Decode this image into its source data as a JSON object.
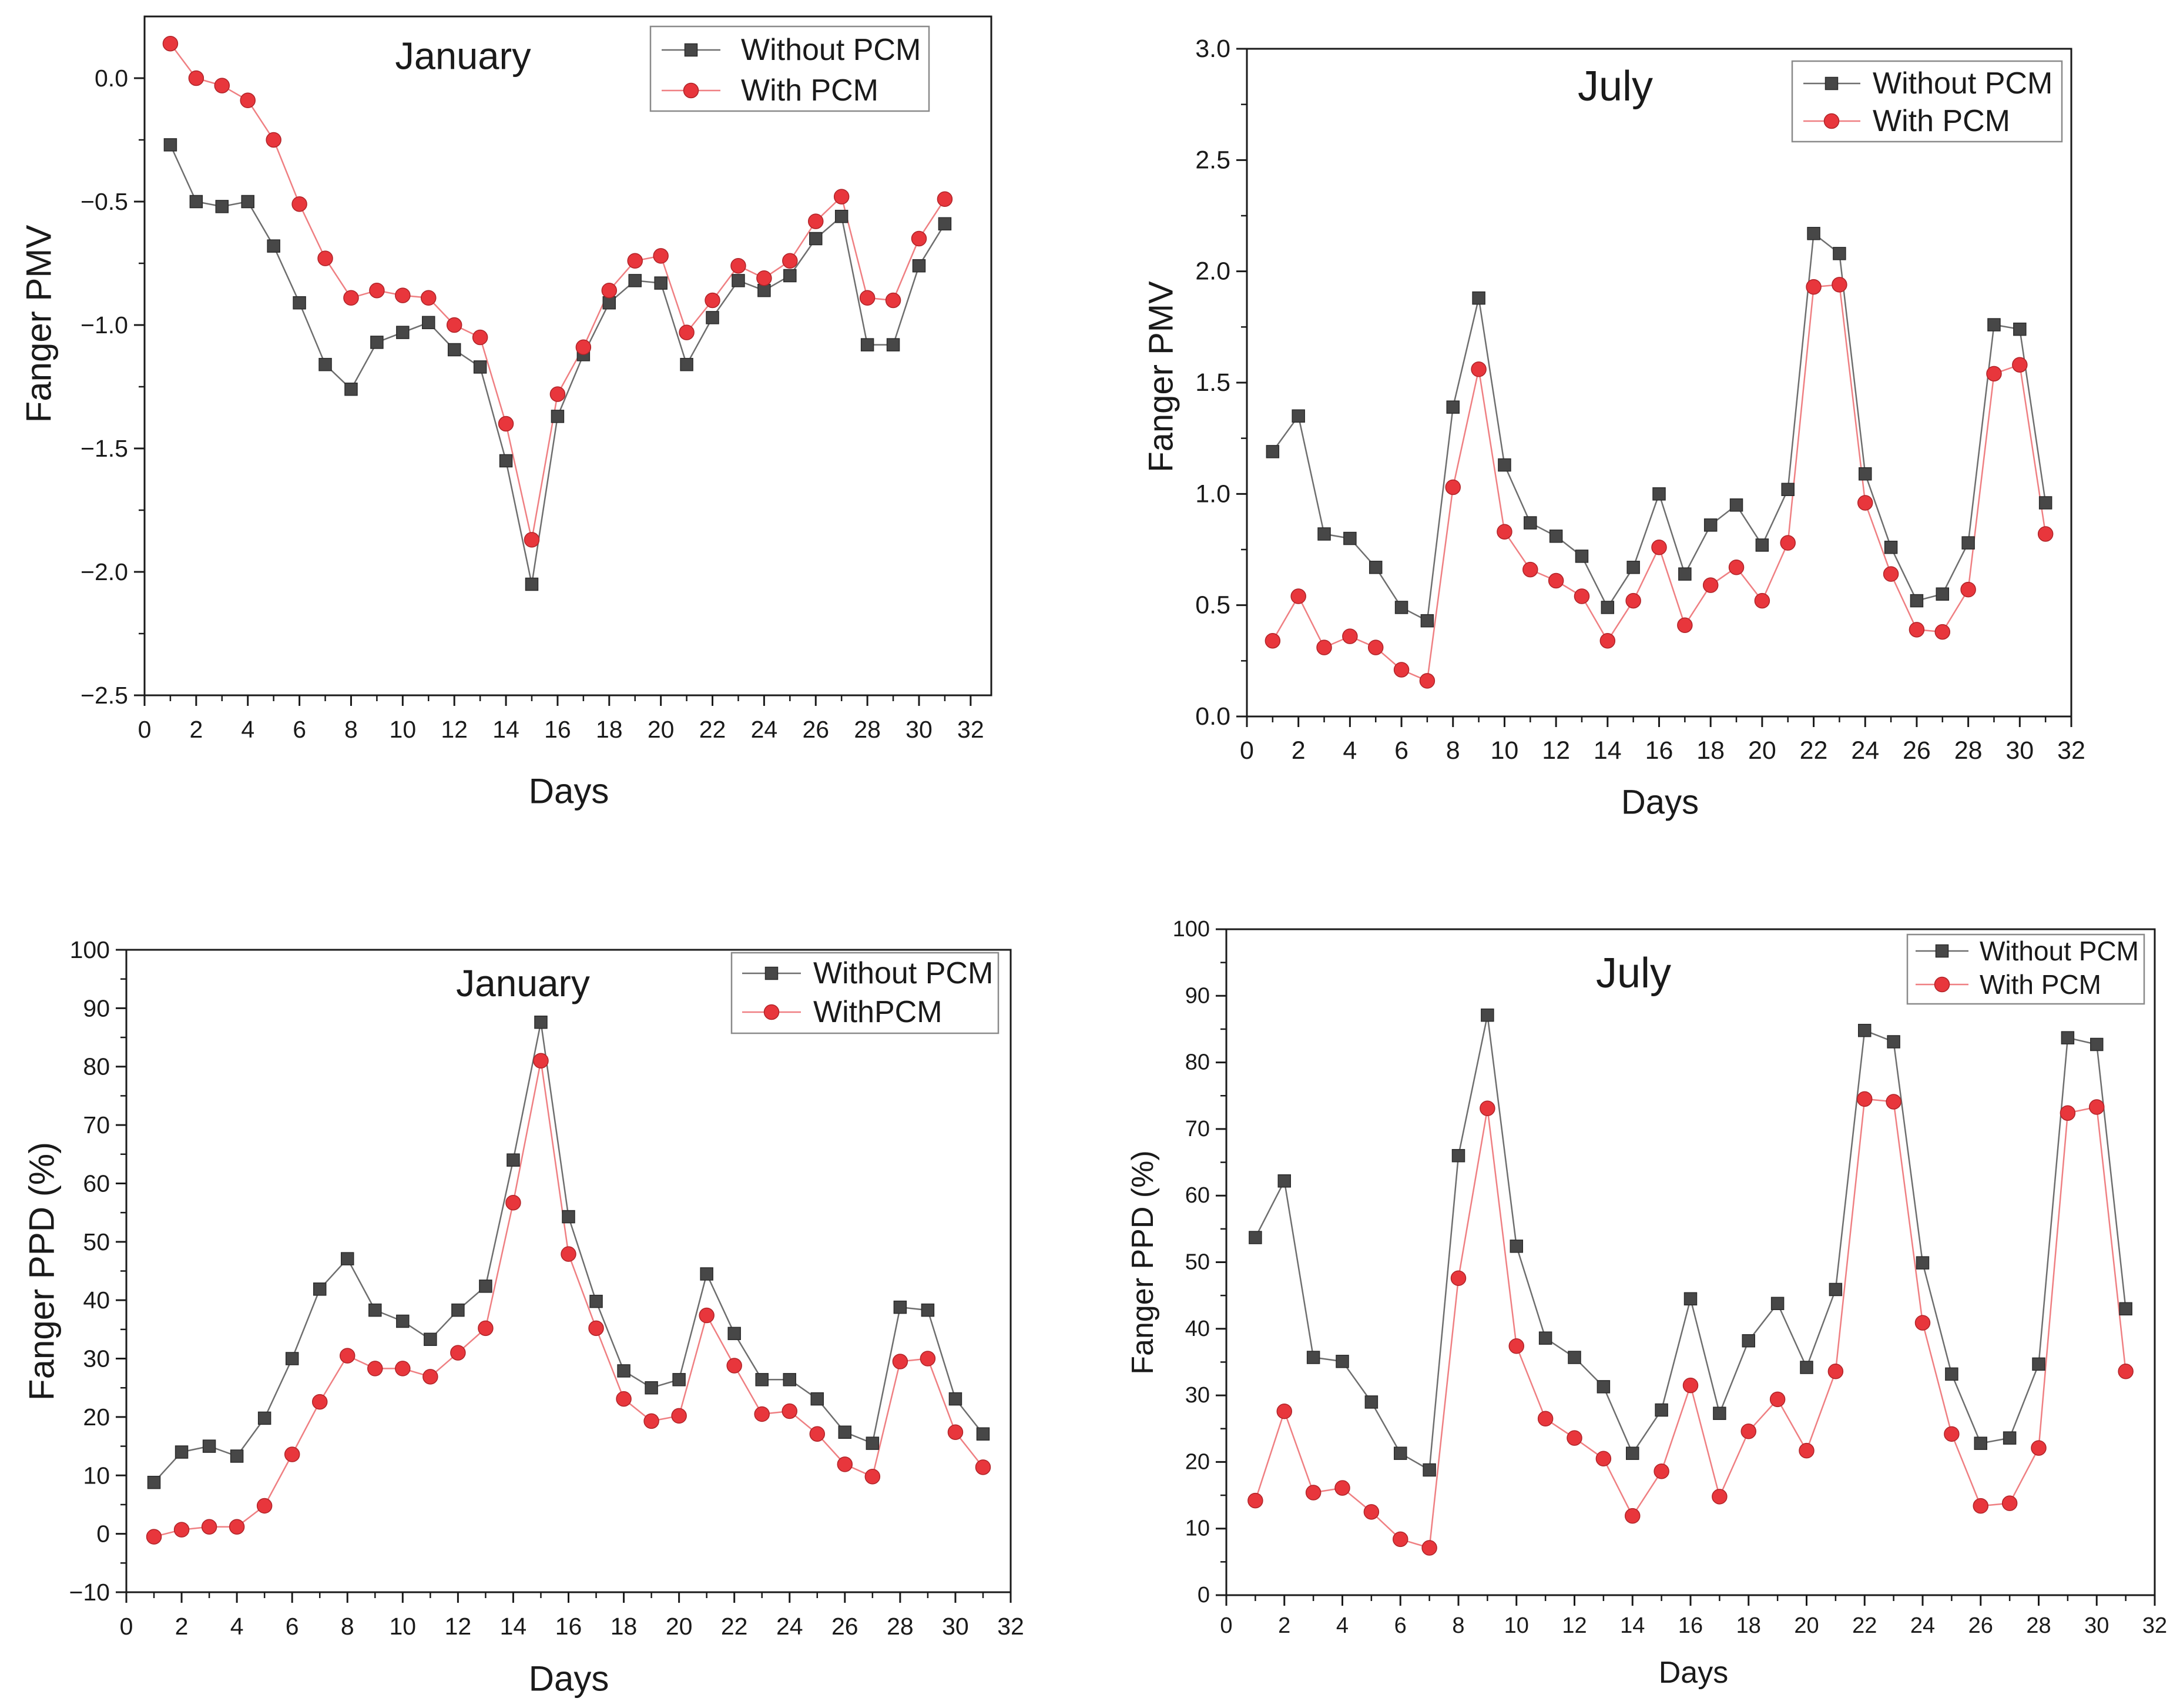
{
  "chart_data": [
    {
      "type": "line",
      "title": "January",
      "xlabel": "Days",
      "ylabel": "Fanger PMV",
      "xlim": [
        0,
        32.8
      ],
      "ylim": [
        -2.5,
        0.25
      ],
      "xtick_labels": [
        "0",
        "2",
        "4",
        "6",
        "8",
        "10",
        "12",
        "14",
        "16",
        "18",
        "20",
        "22",
        "24",
        "26",
        "28",
        "30",
        "32"
      ],
      "ytick_labels": [
        "−2.5",
        "−2.0",
        "−1.5",
        "−1.0",
        "−0.5",
        "0.0"
      ],
      "legend": "top-right",
      "grid": false,
      "x": [
        1,
        2,
        3,
        4,
        5,
        6,
        7,
        8,
        9,
        10,
        11,
        12,
        13,
        14,
        15,
        16,
        17,
        18,
        19,
        20,
        21,
        22,
        23,
        24,
        25,
        26,
        27,
        28,
        29,
        30,
        31
      ],
      "series": [
        {
          "name": "Without PCM",
          "color": "#474747",
          "edge_color": "#2b2b2b",
          "line_color": "#6e6e6e",
          "values": [
            -0.27,
            -0.5,
            -0.52,
            -0.5,
            -0.68,
            -0.91,
            -1.16,
            -1.26,
            -1.07,
            -1.03,
            -0.99,
            -1.1,
            -1.17,
            -1.55,
            -2.05,
            -1.37,
            -1.12,
            -0.91,
            -0.82,
            -0.83,
            -1.16,
            -0.97,
            -0.82,
            -0.86,
            -0.8,
            -0.65,
            -0.56,
            -1.08,
            -1.08,
            -0.76,
            -0.59
          ]
        },
        {
          "name": "With PCM",
          "color": "#e8363c",
          "edge_color": "#b02328",
          "line_color": "#ef7f82",
          "values": [
            0.14,
            0.0,
            -0.03,
            -0.09,
            -0.25,
            -0.51,
            -0.73,
            -0.89,
            -0.86,
            -0.88,
            -0.89,
            -1.0,
            -1.05,
            -1.4,
            -1.87,
            -1.28,
            -1.09,
            -0.86,
            -0.74,
            -0.72,
            -1.03,
            -0.9,
            -0.76,
            -0.81,
            -0.74,
            -0.58,
            -0.48,
            -0.89,
            -0.9,
            -0.65,
            -0.49
          ]
        }
      ]
    },
    {
      "type": "line",
      "title": "July",
      "xlabel": "Days",
      "ylabel": "Fanger PMV",
      "xlim": [
        0,
        32
      ],
      "ylim": [
        0,
        3
      ],
      "xtick_labels": [
        "0",
        "2",
        "4",
        "6",
        "8",
        "10",
        "12",
        "14",
        "16",
        "18",
        "20",
        "22",
        "24",
        "26",
        "28",
        "30",
        "32"
      ],
      "ytick_labels": [
        "0.0",
        "0.5",
        "1.0",
        "1.5",
        "2.0",
        "2.5",
        "3.0"
      ],
      "legend": "top-right",
      "grid": false,
      "x": [
        1,
        2,
        3,
        4,
        5,
        6,
        7,
        8,
        9,
        10,
        11,
        12,
        13,
        14,
        15,
        16,
        17,
        18,
        19,
        20,
        21,
        22,
        23,
        24,
        25,
        26,
        27,
        28,
        29,
        30,
        31
      ],
      "series": [
        {
          "name": "Without PCM",
          "color": "#474747",
          "edge_color": "#2b2b2b",
          "line_color": "#6e6e6e",
          "values": [
            1.19,
            1.35,
            0.82,
            0.8,
            0.67,
            0.49,
            0.43,
            1.39,
            1.88,
            1.13,
            0.87,
            0.81,
            0.72,
            0.49,
            0.67,
            1.0,
            0.64,
            0.86,
            0.95,
            0.77,
            1.02,
            2.17,
            2.08,
            1.09,
            0.76,
            0.52,
            0.55,
            0.78,
            1.76,
            1.74,
            0.96
          ]
        },
        {
          "name": "With PCM",
          "color": "#e8363c",
          "edge_color": "#b02328",
          "line_color": "#ef7f82",
          "values": [
            0.34,
            0.54,
            0.31,
            0.36,
            0.31,
            0.21,
            0.16,
            1.03,
            1.56,
            0.83,
            0.66,
            0.61,
            0.54,
            0.34,
            0.52,
            0.76,
            0.41,
            0.59,
            0.67,
            0.52,
            0.78,
            1.93,
            1.94,
            0.96,
            0.64,
            0.39,
            0.38,
            0.57,
            1.54,
            1.58,
            0.82
          ]
        }
      ]
    },
    {
      "type": "line",
      "title": "January",
      "xlabel": "Days",
      "ylabel": "Fanger PPD (%)",
      "xlim": [
        0,
        32
      ],
      "ylim": [
        -10,
        100
      ],
      "xtick_labels": [
        "0",
        "2",
        "4",
        "6",
        "8",
        "10",
        "12",
        "14",
        "16",
        "18",
        "20",
        "22",
        "24",
        "26",
        "28",
        "30",
        "32"
      ],
      "ytick_labels": [
        "−10",
        "0",
        "10",
        "20",
        "30",
        "40",
        "50",
        "60",
        "70",
        "80",
        "90",
        "100"
      ],
      "legend": "top-right",
      "grid": false,
      "x": [
        1,
        2,
        3,
        4,
        5,
        6,
        7,
        8,
        9,
        10,
        11,
        12,
        13,
        14,
        15,
        16,
        17,
        18,
        19,
        20,
        21,
        22,
        23,
        24,
        25,
        26,
        27,
        28,
        29,
        30,
        31
      ],
      "series": [
        {
          "name": "Without PCM",
          "color": "#474747",
          "edge_color": "#2b2b2b",
          "line_color": "#6e6e6e",
          "values": [
            8.8,
            14.0,
            15.0,
            13.3,
            19.8,
            30.0,
            41.9,
            47.1,
            38.3,
            36.4,
            33.3,
            38.3,
            42.4,
            64.0,
            87.6,
            54.3,
            39.8,
            27.9,
            25.0,
            26.4,
            44.5,
            34.3,
            26.4,
            26.4,
            23.1,
            17.4,
            15.5,
            38.8,
            38.3,
            23.1,
            17.1
          ]
        },
        {
          "name": "WithPCM",
          "color": "#e8363c",
          "edge_color": "#b02328",
          "line_color": "#ef7f82",
          "values": [
            -0.5,
            0.7,
            1.2,
            1.2,
            4.8,
            13.6,
            22.6,
            30.5,
            28.3,
            28.3,
            26.9,
            31.0,
            35.2,
            56.7,
            81.0,
            47.9,
            35.2,
            23.1,
            19.3,
            20.2,
            37.4,
            28.8,
            20.5,
            21.0,
            17.1,
            11.9,
            9.8,
            29.5,
            30.0,
            17.4,
            11.4
          ]
        }
      ]
    },
    {
      "type": "line",
      "title": "July",
      "xlabel": "Days",
      "ylabel": "Fanger PPD (%)",
      "xlim": [
        0,
        32
      ],
      "ylim": [
        0,
        100
      ],
      "xtick_labels": [
        "0",
        "2",
        "4",
        "6",
        "8",
        "10",
        "12",
        "14",
        "16",
        "18",
        "20",
        "22",
        "24",
        "26",
        "28",
        "30",
        "32"
      ],
      "ytick_labels": [
        "0",
        "10",
        "20",
        "30",
        "40",
        "50",
        "60",
        "70",
        "80",
        "90",
        "100"
      ],
      "legend": "top-right",
      "grid": false,
      "x": [
        1,
        2,
        3,
        4,
        5,
        6,
        7,
        8,
        9,
        10,
        11,
        12,
        13,
        14,
        15,
        16,
        17,
        18,
        19,
        20,
        21,
        22,
        23,
        24,
        25,
        26,
        27,
        28,
        29,
        30,
        31
      ],
      "series": [
        {
          "name": "Without PCM",
          "color": "#474747",
          "edge_color": "#2b2b2b",
          "line_color": "#6e6e6e",
          "values": [
            53.7,
            62.2,
            35.7,
            35.1,
            29.0,
            21.3,
            18.8,
            66.0,
            87.1,
            52.4,
            38.6,
            35.7,
            31.3,
            21.3,
            27.8,
            44.5,
            27.3,
            38.2,
            43.8,
            34.2,
            45.9,
            84.8,
            83.1,
            49.9,
            33.2,
            22.8,
            23.6,
            34.7,
            83.7,
            82.7,
            43.0
          ]
        },
        {
          "name": "With PCM",
          "color": "#e8363c",
          "edge_color": "#b02328",
          "line_color": "#ef7f82",
          "values": [
            14.2,
            27.6,
            15.4,
            16.1,
            12.5,
            8.4,
            7.1,
            47.6,
            73.1,
            37.4,
            26.5,
            23.6,
            20.5,
            11.9,
            18.6,
            31.5,
            14.8,
            24.6,
            29.4,
            21.7,
            33.6,
            74.5,
            74.1,
            40.9,
            24.2,
            13.4,
            13.8,
            22.1,
            72.4,
            73.3,
            33.6
          ]
        }
      ]
    }
  ]
}
